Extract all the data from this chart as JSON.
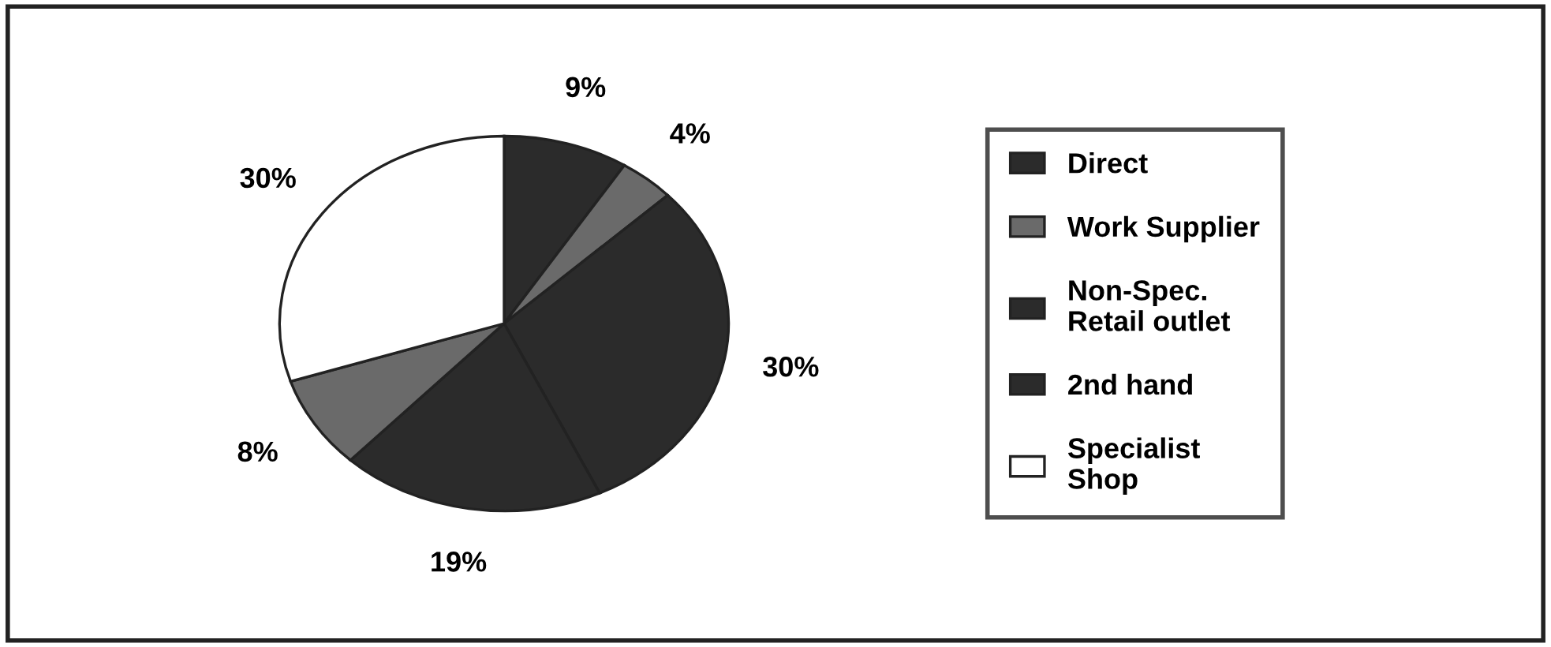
{
  "chart_data": {
    "type": "pie",
    "categories": [
      "Direct",
      "Work Supplier",
      "Non-Spec.\nRetail outlet",
      "2nd hand",
      null,
      "Specialist\nShop"
    ],
    "values": [
      9,
      4,
      30,
      19,
      8,
      30
    ],
    "colors": [
      "#2b2b2b",
      "#6a6a6a",
      "#2b2b2b",
      "#2b2b2b",
      "#6a6a6a",
      "#ffffff"
    ],
    "value_labels": [
      "9%",
      "4%",
      "30%",
      "19%",
      "8%",
      "30%"
    ],
    "legend": "right"
  }
}
